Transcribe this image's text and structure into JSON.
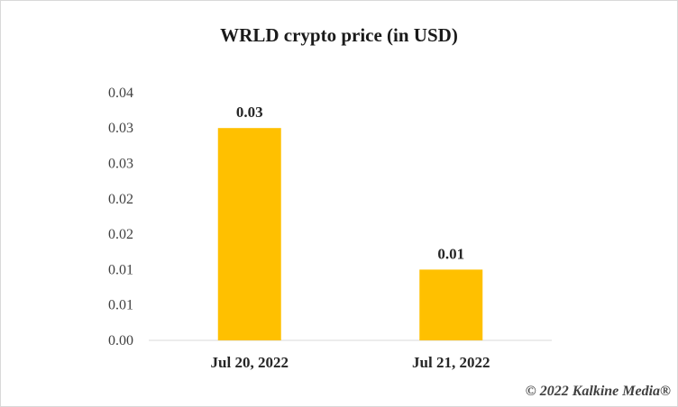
{
  "chart_data": {
    "type": "bar",
    "title": "WRLD crypto price (in USD)",
    "categories": [
      "Jul 20, 2022",
      "Jul 21, 2022"
    ],
    "values": [
      0.03,
      0.01
    ],
    "data_labels": [
      "0.03",
      "0.01"
    ],
    "ytick_labels": [
      "0.00",
      "0.01",
      "0.01",
      "0.02",
      "0.02",
      "0.03",
      "0.03",
      "0.04"
    ],
    "ylim": [
      0,
      0.035
    ],
    "grid": false,
    "legend": "none",
    "bar_color": "#FFC000"
  },
  "watermark": "© 2022 Kalkine Media®"
}
